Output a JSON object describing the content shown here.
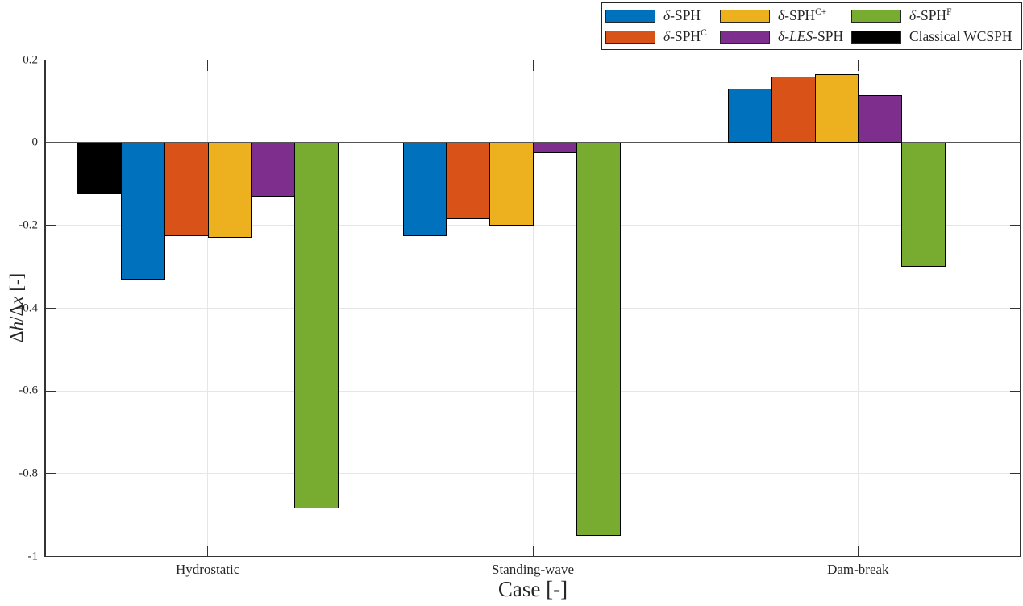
{
  "figure": {
    "background": "#ffffff"
  },
  "style": {
    "axis_color": "#333333",
    "grid_color": "#e6e6e6",
    "baseline_color": "#555555",
    "text_color": "#262626",
    "bar_edge_color": "#000000"
  },
  "legend": {
    "items": [
      {
        "key": "delta-sph",
        "color": "#0072BD",
        "parts": [
          {
            "t": "δ",
            "i": true
          },
          {
            "t": "-SPH"
          }
        ]
      },
      {
        "key": "delta-sph-c",
        "color": "#D95319",
        "parts": [
          {
            "t": "δ",
            "i": true
          },
          {
            "t": "-SPH"
          },
          {
            "t": "C",
            "sup": true
          }
        ]
      },
      {
        "key": "delta-sph-c-plus",
        "color": "#EDB120",
        "parts": [
          {
            "t": "δ",
            "i": true
          },
          {
            "t": "-SPH"
          },
          {
            "t": "C+",
            "sup": true
          }
        ]
      },
      {
        "key": "delta-les-sph",
        "color": "#7E2F8E",
        "parts": [
          {
            "t": "δ",
            "i": true
          },
          {
            "t": "-"
          },
          {
            "t": "LES",
            "i": true
          },
          {
            "t": "-SPH"
          }
        ]
      },
      {
        "key": "delta-sph-f",
        "color": "#77AC30",
        "parts": [
          {
            "t": "δ",
            "i": true
          },
          {
            "t": "-SPH"
          },
          {
            "t": "F",
            "sup": true
          }
        ]
      },
      {
        "key": "classical-wcsph",
        "color": "#000000",
        "parts": [
          {
            "t": "Classical WCSPH"
          }
        ]
      }
    ]
  },
  "chart_data": {
    "type": "bar",
    "title": "",
    "xlabel": "Case [-]",
    "ylabel": "Δh/Δx [-]",
    "ylabel_parts": [
      {
        "t": "Δ"
      },
      {
        "t": "h",
        "i": true
      },
      {
        "t": "/"
      },
      {
        "t": "Δ"
      },
      {
        "t": "x",
        "i": true
      },
      {
        "t": " [-]"
      }
    ],
    "ylim": [
      -1,
      0.2
    ],
    "yticks": [
      0.2,
      0,
      -0.2,
      -0.4,
      -0.6,
      -0.8,
      -1
    ],
    "ytick_labels": [
      "0.2",
      "0",
      "-0.2",
      "-0.4",
      "-0.6",
      "-0.8",
      "-1"
    ],
    "grid": true,
    "legend_position": "top-right-outside",
    "categories": [
      "Hydrostatic",
      "Standing-wave",
      "Dam-break"
    ],
    "category_keys": [
      "hydrostatic",
      "standing-wave",
      "dam-break"
    ],
    "bar_layout": "6 slots per group, group width 0.8 of category, bars packed left, missing values skipped",
    "series": [
      {
        "key": "classical-wcsph",
        "name": "Classical WCSPH",
        "color": "#000000",
        "values": [
          -0.125,
          null,
          null
        ]
      },
      {
        "key": "delta-sph",
        "name": "δ-SPH",
        "color": "#0072BD",
        "values": [
          -0.33,
          -0.225,
          0.13
        ]
      },
      {
        "key": "delta-sph-c",
        "name": "δ-SPH^C",
        "color": "#D95319",
        "values": [
          -0.225,
          -0.185,
          0.16
        ]
      },
      {
        "key": "delta-sph-c-plus",
        "name": "δ-SPH^C+",
        "color": "#EDB120",
        "values": [
          -0.23,
          -0.2,
          0.165
        ]
      },
      {
        "key": "delta-les-sph",
        "name": "δ-LES-SPH",
        "color": "#7E2F8E",
        "values": [
          -0.13,
          -0.025,
          0.115
        ]
      },
      {
        "key": "delta-sph-f",
        "name": "δ-SPH^F",
        "color": "#77AC30",
        "values": [
          -0.885,
          -0.95,
          -0.3
        ]
      }
    ]
  }
}
